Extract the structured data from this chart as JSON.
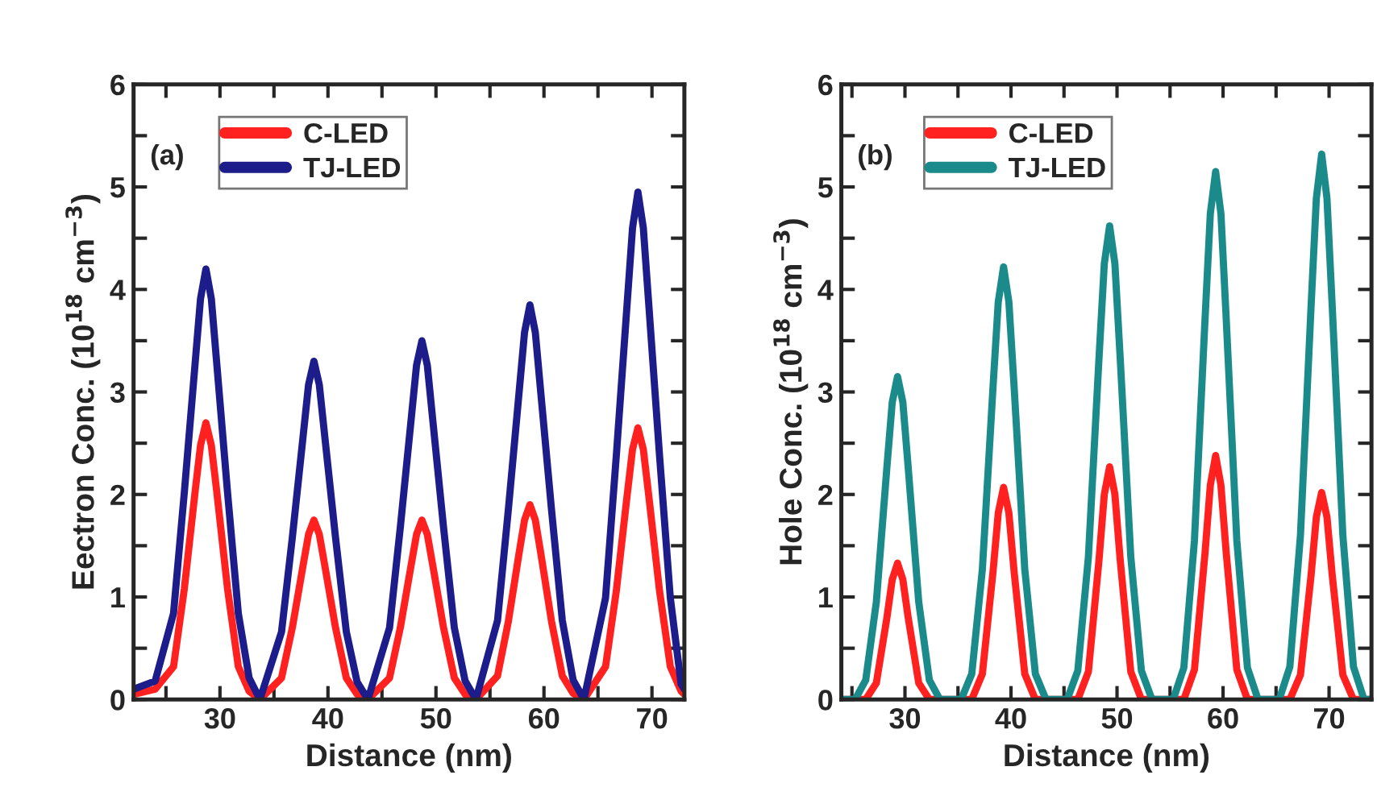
{
  "chart_data": [
    {
      "type": "line",
      "xlabel": "Distance (nm)",
      "ylabel": "Eectron Conc. (10$^{18}$ cm$^{−3}$)",
      "annotations": [
        "(a)"
      ],
      "legend": "top left",
      "line_style": "solid",
      "marker": "none",
      "xlim": [
        22,
        73
      ],
      "xticks": [
        {
          "value": 25,
          "label": null
        },
        30,
        {
          "value": 35,
          "label": null
        },
        40,
        {
          "value": 45,
          "label": null
        },
        50,
        {
          "value": 55,
          "label": null
        },
        60,
        {
          "value": 65,
          "label": null
        },
        70
      ],
      "ylim": [
        0,
        6
      ],
      "yticks": [
        0,
        {
          "value": 0.5,
          "label": null
        },
        1,
        {
          "value": 1.5,
          "label": null
        },
        2,
        {
          "value": 2.5,
          "label": null
        },
        3,
        {
          "value": 3.5,
          "label": null
        },
        4,
        {
          "value": 4.5,
          "label": null
        },
        5,
        {
          "value": 5.5,
          "label": null
        },
        6
      ],
      "x": [
        22,
        24,
        25.7,
        26.7,
        27.7,
        28.2,
        28.7,
        29.2,
        29.7,
        30.7,
        31.7,
        32.7,
        33.7,
        35.7,
        36.7,
        37.7,
        38.2,
        38.7,
        39.2,
        39.7,
        40.7,
        41.7,
        42.7,
        43.7,
        45.7,
        46.7,
        47.7,
        48.2,
        48.7,
        49.2,
        49.7,
        50.7,
        51.7,
        52.7,
        53.7,
        55.7,
        56.7,
        57.7,
        58.2,
        58.7,
        59.2,
        59.7,
        60.7,
        61.7,
        62.7,
        63.7,
        65.7,
        66.7,
        67.7,
        68.2,
        68.7,
        69.2,
        69.7,
        70.7,
        71.7,
        72.7,
        73
      ],
      "series": [
        {
          "name": "C-LED",
          "color": "#ff2020",
          "values": [
            0.05,
            0.1,
            0.32,
            1.08,
            2.03,
            2.48,
            2.7,
            2.48,
            2.03,
            1.08,
            0.32,
            0.08,
            0,
            0.21,
            0.7,
            1.31,
            1.61,
            1.75,
            1.61,
            1.31,
            0.7,
            0.21,
            0.05,
            0,
            0.21,
            0.7,
            1.31,
            1.61,
            1.75,
            1.61,
            1.31,
            0.7,
            0.21,
            0.05,
            0,
            0.23,
            0.76,
            1.43,
            1.75,
            1.9,
            1.75,
            1.43,
            0.76,
            0.23,
            0.06,
            0,
            0.32,
            1.06,
            1.99,
            2.44,
            2.65,
            2.44,
            1.99,
            1.06,
            0.32,
            0.08,
            0.05
          ]
        },
        {
          "name": "TJ-LED",
          "color": "#1c1c8a",
          "values": [
            0.1,
            0.18,
            0.84,
            2.02,
            3.28,
            3.91,
            4.2,
            3.91,
            3.28,
            2.02,
            0.84,
            0.21,
            0,
            0.66,
            1.58,
            2.57,
            3.07,
            3.3,
            3.07,
            2.57,
            1.58,
            0.66,
            0.17,
            0,
            0.7,
            1.68,
            2.73,
            3.26,
            3.5,
            3.26,
            2.73,
            1.68,
            0.7,
            0.18,
            0,
            0.77,
            1.85,
            3.0,
            3.58,
            3.85,
            3.58,
            3.0,
            1.85,
            0.77,
            0.19,
            0,
            0.99,
            2.38,
            3.86,
            4.6,
            4.95,
            4.6,
            3.86,
            2.38,
            0.99,
            0.15,
            0.1
          ]
        }
      ]
    },
    {
      "type": "line",
      "xlabel": "Distance (nm)",
      "ylabel": "Hole Conc. (10$^{18}$ cm$^{−3}$)",
      "annotations": [
        "(b)"
      ],
      "legend": "top left",
      "line_style": "solid",
      "marker": "none",
      "xlim": [
        24,
        74
      ],
      "xticks": [
        {
          "value": 25,
          "label": null
        },
        30,
        {
          "value": 35,
          "label": null
        },
        40,
        {
          "value": 45,
          "label": null
        },
        50,
        {
          "value": 55,
          "label": null
        },
        60,
        {
          "value": 65,
          "label": null
        },
        70
      ],
      "ylim": [
        0,
        6
      ],
      "yticks": [
        0,
        {
          "value": 0.5,
          "label": null
        },
        1,
        {
          "value": 1.5,
          "label": null
        },
        2,
        {
          "value": 2.5,
          "label": null
        },
        3,
        {
          "value": 3.5,
          "label": null
        },
        4,
        {
          "value": 4.5,
          "label": null
        },
        5,
        {
          "value": 5.5,
          "label": null
        },
        6
      ],
      "x": [
        24,
        25.3,
        26.3,
        27.3,
        28.3,
        28.8,
        29.3,
        29.8,
        30.3,
        31.3,
        32.3,
        33.3,
        35.3,
        36.3,
        37.3,
        38.3,
        38.8,
        39.3,
        39.8,
        40.3,
        41.3,
        42.3,
        43.3,
        45.3,
        46.3,
        47.3,
        48.3,
        48.8,
        49.3,
        49.8,
        50.3,
        51.3,
        52.3,
        53.3,
        55.3,
        56.3,
        57.3,
        58.3,
        58.8,
        59.3,
        59.8,
        60.3,
        61.3,
        62.3,
        63.3,
        65.3,
        66.3,
        67.3,
        68.3,
        68.8,
        69.3,
        69.8,
        70.3,
        71.3,
        72.3,
        73.3,
        74
      ],
      "series": [
        {
          "name": "C-LED",
          "color": "#ff2020",
          "values": [
            0,
            0,
            0,
            0.16,
            0.8,
            1.17,
            1.33,
            1.17,
            0.8,
            0.16,
            0,
            0,
            0,
            0,
            0.25,
            1.24,
            1.82,
            2.07,
            1.82,
            1.24,
            0.25,
            0,
            0,
            0,
            0,
            0.27,
            1.36,
            2.0,
            2.27,
            2.0,
            1.36,
            0.27,
            0,
            0,
            0,
            0,
            0.29,
            1.43,
            2.09,
            2.38,
            2.09,
            1.43,
            0.29,
            0,
            0,
            0,
            0,
            0.24,
            1.21,
            1.78,
            2.02,
            1.78,
            1.21,
            0.24,
            0,
            0,
            0
          ]
        },
        {
          "name": "TJ-LED",
          "color": "#1a8a8a",
          "values": [
            0,
            0,
            0.19,
            0.95,
            2.27,
            2.9,
            3.15,
            2.9,
            2.27,
            0.95,
            0.19,
            0,
            0,
            0.25,
            1.27,
            3.04,
            3.88,
            4.22,
            3.88,
            3.04,
            1.27,
            0.25,
            0,
            0,
            0.28,
            1.39,
            3.33,
            4.25,
            4.62,
            4.25,
            3.33,
            1.39,
            0.28,
            0,
            0,
            0.31,
            1.55,
            3.71,
            4.74,
            5.15,
            4.74,
            3.71,
            1.55,
            0.31,
            0,
            0,
            0.32,
            1.6,
            3.83,
            4.89,
            5.32,
            4.89,
            3.83,
            1.6,
            0.32,
            0,
            0
          ]
        }
      ]
    }
  ]
}
